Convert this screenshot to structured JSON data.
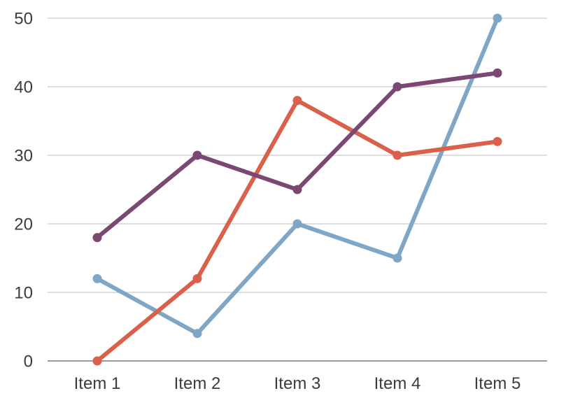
{
  "chart_data": {
    "type": "line",
    "title": "",
    "xlabel": "",
    "ylabel": "",
    "categories": [
      "Item 1",
      "Item 2",
      "Item 3",
      "Item 4",
      "Item 5"
    ],
    "ylim": [
      0,
      50
    ],
    "yticks": [
      "0",
      "10",
      "20",
      "30",
      "40",
      "50"
    ],
    "grid": true,
    "legend": "none",
    "series": [
      {
        "color": "#80a6c6",
        "values": [
          12,
          4,
          20,
          15,
          50
        ]
      },
      {
        "color": "#d9614c",
        "values": [
          0,
          12,
          38,
          30,
          32
        ]
      },
      {
        "color": "#7a4872",
        "values": [
          18,
          30,
          25,
          40,
          42
        ]
      }
    ]
  }
}
